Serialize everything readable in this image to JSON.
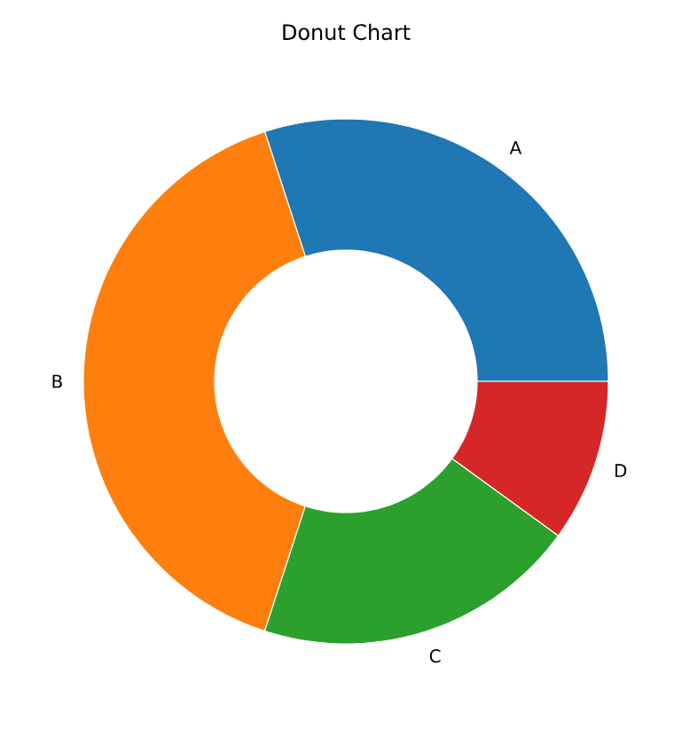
{
  "chart_data": {
    "type": "donut",
    "title": "Donut Chart",
    "categories": [
      "A",
      "B",
      "C",
      "D"
    ],
    "values": [
      30,
      40,
      20,
      10
    ],
    "colors": [
      "#1f77b4",
      "#ff7f0e",
      "#2ca02c",
      "#d62728"
    ]
  }
}
